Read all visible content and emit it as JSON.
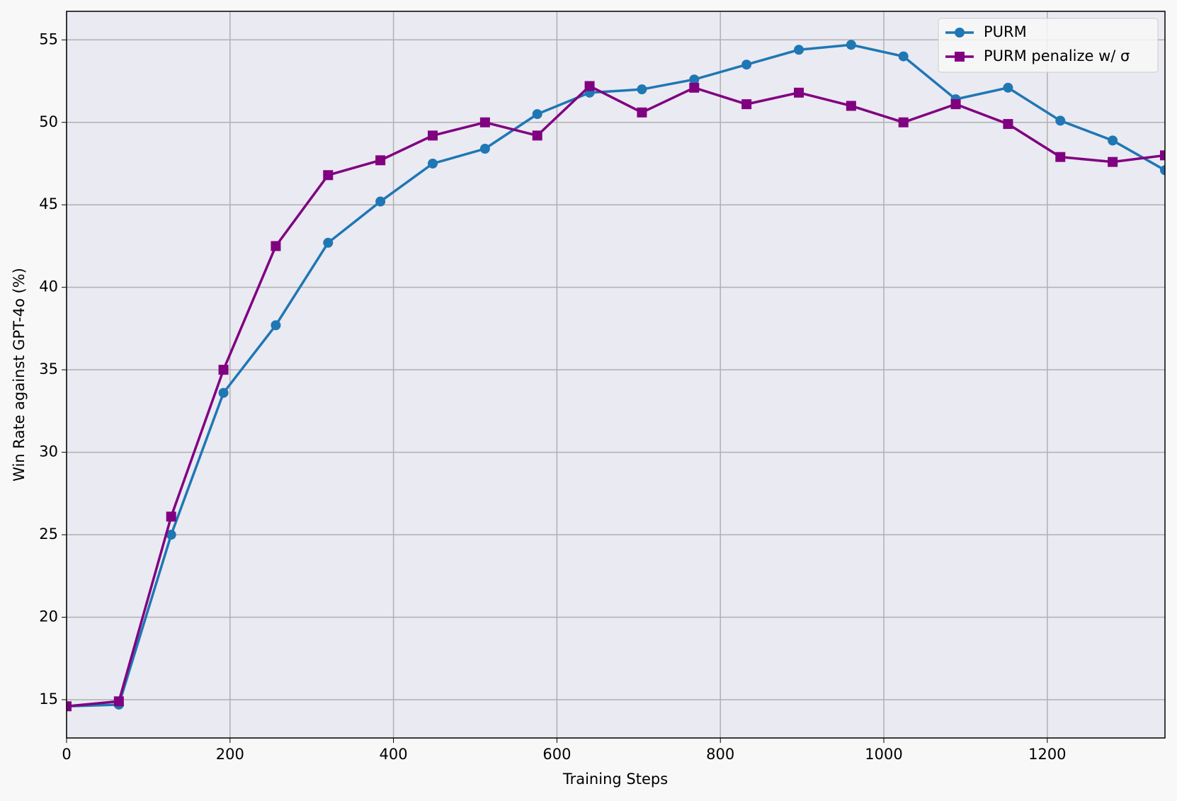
{
  "chart_data": {
    "type": "line",
    "xlabel": "Training Steps",
    "ylabel": "Win Rate against GPT-4o (%)",
    "x": [
      0,
      64,
      128,
      192,
      256,
      320,
      384,
      448,
      512,
      576,
      640,
      704,
      768,
      832,
      896,
      960,
      1024,
      1088,
      1152,
      1216,
      1280,
      1344
    ],
    "series": [
      {
        "name": "PURM",
        "color": "#1f77b4",
        "marker": "circle",
        "values": [
          14.6,
          14.7,
          25.0,
          33.6,
          37.7,
          42.7,
          45.2,
          47.5,
          48.4,
          50.5,
          51.8,
          52.0,
          52.6,
          53.5,
          54.4,
          54.7,
          54.0,
          51.4,
          52.1,
          50.1,
          48.9,
          47.1
        ]
      },
      {
        "name": "PURM penalize w/ σ",
        "color": "#800080",
        "marker": "square",
        "values": [
          14.6,
          14.9,
          26.1,
          35.0,
          42.5,
          46.8,
          47.7,
          49.2,
          50.0,
          49.2,
          52.2,
          50.6,
          52.1,
          51.1,
          51.8,
          51.0,
          50.0,
          51.1,
          49.9,
          47.9,
          47.6,
          48.0
        ]
      }
    ],
    "xlim": [
      0,
      1344
    ],
    "xticks": [
      0,
      200,
      400,
      600,
      800,
      1000,
      1200
    ],
    "ylim": [
      12.68,
      56.73
    ],
    "yticks": [
      15,
      20,
      25,
      30,
      35,
      40,
      45,
      50,
      55
    ],
    "grid": true,
    "legend": "upper right"
  }
}
